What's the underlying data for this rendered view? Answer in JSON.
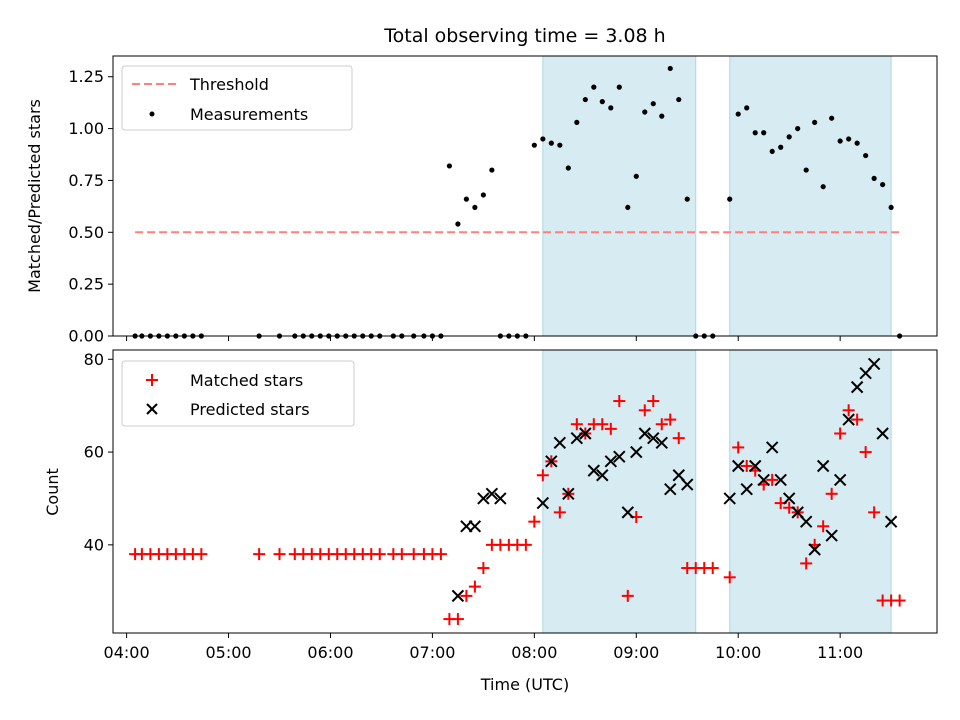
{
  "chart_data": [
    {
      "type": "scatter",
      "panel": "top",
      "title": "Total observing time = 3.08 h",
      "xlabel": "",
      "ylabel": "Matched/Predicted stars",
      "xlim": [
        "03:52",
        "11:57"
      ],
      "ylim": [
        0,
        1.35
      ],
      "yticks": [
        0.0,
        0.25,
        0.5,
        0.75,
        1.0,
        1.25
      ],
      "ytick_labels": [
        "0.00",
        "0.25",
        "0.50",
        "0.75",
        "1.00",
        "1.25"
      ],
      "legend_position": "top-left",
      "shaded_intervals": [
        [
          "08:05",
          "09:35"
        ],
        [
          "09:55",
          "11:30"
        ]
      ],
      "threshold": {
        "name": "Threshold",
        "value": 0.5,
        "x_range": [
          "04:05",
          "11:35"
        ],
        "color": "#ff7f7f"
      },
      "series": [
        {
          "name": "Measurements",
          "color": "#000000",
          "x": [
            "04:05",
            "04:09",
            "04:14",
            "04:19",
            "04:24",
            "04:29",
            "04:34",
            "04:39",
            "04:44",
            "05:18",
            "05:30",
            "05:39",
            "05:44",
            "05:49",
            "05:54",
            "05:59",
            "06:04",
            "06:09",
            "06:14",
            "06:19",
            "06:24",
            "06:29",
            "06:37",
            "06:42",
            "06:49",
            "06:55",
            "07:00",
            "07:05",
            "07:10",
            "07:15",
            "07:20",
            "07:25",
            "07:30",
            "07:35",
            "07:40",
            "07:45",
            "07:50",
            "07:55",
            "08:00",
            "08:05",
            "08:10",
            "08:15",
            "08:20",
            "08:25",
            "08:30",
            "08:35",
            "08:40",
            "08:45",
            "08:50",
            "08:55",
            "09:00",
            "09:05",
            "09:10",
            "09:15",
            "09:20",
            "09:25",
            "09:30",
            "09:35",
            "09:40",
            "09:45",
            "09:55",
            "10:00",
            "10:05",
            "10:10",
            "10:15",
            "10:20",
            "10:25",
            "10:30",
            "10:35",
            "10:40",
            "10:45",
            "10:50",
            "10:55",
            "11:00",
            "11:05",
            "11:10",
            "11:15",
            "11:20",
            "11:25",
            "11:30",
            "11:35"
          ],
          "y": [
            0,
            0,
            0,
            0,
            0,
            0,
            0,
            0,
            0,
            0,
            0,
            0,
            0,
            0,
            0,
            0,
            0,
            0,
            0,
            0,
            0,
            0,
            0,
            0,
            0,
            0,
            0,
            0,
            0.82,
            0.54,
            0.66,
            0.62,
            0.68,
            0.8,
            0,
            0,
            0,
            0,
            0.92,
            0.95,
            0.93,
            0.92,
            0.81,
            1.03,
            1.14,
            1.2,
            1.13,
            1.1,
            1.2,
            0.62,
            0.77,
            1.08,
            1.12,
            1.06,
            1.29,
            1.14,
            0.66,
            0,
            0,
            0,
            0.66,
            1.07,
            1.1,
            0.98,
            0.98,
            0.89,
            0.91,
            0.96,
            1.0,
            0.8,
            1.03,
            0.72,
            1.05,
            0.94,
            0.95,
            0.93,
            0.87,
            0.76,
            0.73,
            0.62,
            0
          ]
        }
      ]
    },
    {
      "type": "scatter",
      "panel": "bottom",
      "title": "",
      "xlabel": "Time (UTC)",
      "ylabel": "Count",
      "xlim": [
        "03:52",
        "11:57"
      ],
      "ylim": [
        21,
        82
      ],
      "xticks": [
        "04:00",
        "05:00",
        "06:00",
        "07:00",
        "08:00",
        "09:00",
        "10:00",
        "11:00"
      ],
      "yticks": [
        40,
        60,
        80
      ],
      "ytick_labels": [
        "40",
        "60",
        "80"
      ],
      "legend_position": "top-left",
      "shaded_intervals": [
        [
          "08:05",
          "09:35"
        ],
        [
          "09:55",
          "11:30"
        ]
      ],
      "series": [
        {
          "name": "Matched stars",
          "marker": "plus",
          "color": "#ff0000",
          "x": [
            "04:05",
            "04:09",
            "04:14",
            "04:19",
            "04:24",
            "04:29",
            "04:34",
            "04:39",
            "04:44",
            "05:18",
            "05:30",
            "05:39",
            "05:44",
            "05:49",
            "05:54",
            "05:59",
            "06:04",
            "06:09",
            "06:14",
            "06:19",
            "06:24",
            "06:29",
            "06:37",
            "06:42",
            "06:49",
            "06:55",
            "07:00",
            "07:05",
            "07:10",
            "07:15",
            "07:20",
            "07:25",
            "07:30",
            "07:35",
            "07:40",
            "07:45",
            "07:50",
            "07:55",
            "08:00",
            "08:05",
            "08:10",
            "08:15",
            "08:20",
            "08:25",
            "08:30",
            "08:35",
            "08:40",
            "08:45",
            "08:50",
            "08:55",
            "09:00",
            "09:05",
            "09:10",
            "09:15",
            "09:20",
            "09:25",
            "09:30",
            "09:35",
            "09:40",
            "09:45",
            "09:55",
            "10:00",
            "10:05",
            "10:10",
            "10:15",
            "10:20",
            "10:25",
            "10:30",
            "10:35",
            "10:40",
            "10:45",
            "10:50",
            "10:55",
            "11:00",
            "11:05",
            "11:10",
            "11:15",
            "11:20",
            "11:25",
            "11:30",
            "11:35"
          ],
          "y": [
            38,
            38,
            38,
            38,
            38,
            38,
            38,
            38,
            38,
            38,
            38,
            38,
            38,
            38,
            38,
            38,
            38,
            38,
            38,
            38,
            38,
            38,
            38,
            38,
            38,
            38,
            38,
            38,
            24,
            24,
            29,
            31,
            35,
            40,
            40,
            40,
            40,
            40,
            45,
            55,
            58,
            47,
            51,
            66,
            64,
            66,
            66,
            65,
            71,
            29,
            46,
            69,
            71,
            66,
            67,
            63,
            35,
            35,
            35,
            35,
            33,
            61,
            57,
            56,
            53,
            54,
            49,
            48,
            47,
            36,
            40,
            44,
            51,
            64,
            69,
            67,
            60,
            47,
            28,
            28,
            28
          ]
        },
        {
          "name": "Predicted stars",
          "marker": "x",
          "color": "#000000",
          "x": [
            "07:15",
            "07:20",
            "07:25",
            "07:30",
            "07:35",
            "07:40",
            "08:05",
            "08:10",
            "08:15",
            "08:20",
            "08:25",
            "08:30",
            "08:35",
            "08:40",
            "08:45",
            "08:50",
            "08:55",
            "09:00",
            "09:05",
            "09:10",
            "09:15",
            "09:20",
            "09:25",
            "09:30",
            "09:55",
            "10:00",
            "10:05",
            "10:10",
            "10:15",
            "10:20",
            "10:25",
            "10:30",
            "10:35",
            "10:40",
            "10:45",
            "10:50",
            "10:55",
            "11:00",
            "11:05",
            "11:10",
            "11:15",
            "11:20",
            "11:25",
            "11:30"
          ],
          "y": [
            29,
            44,
            44,
            50,
            51,
            50,
            49,
            58,
            62,
            51,
            63,
            64,
            56,
            55,
            58,
            59,
            47,
            60,
            64,
            63,
            62,
            52,
            55,
            53,
            50,
            57,
            52,
            57,
            54,
            61,
            54,
            50,
            47,
            45,
            39,
            57,
            42,
            54,
            67,
            74,
            77,
            79,
            64,
            45
          ]
        }
      ]
    }
  ]
}
